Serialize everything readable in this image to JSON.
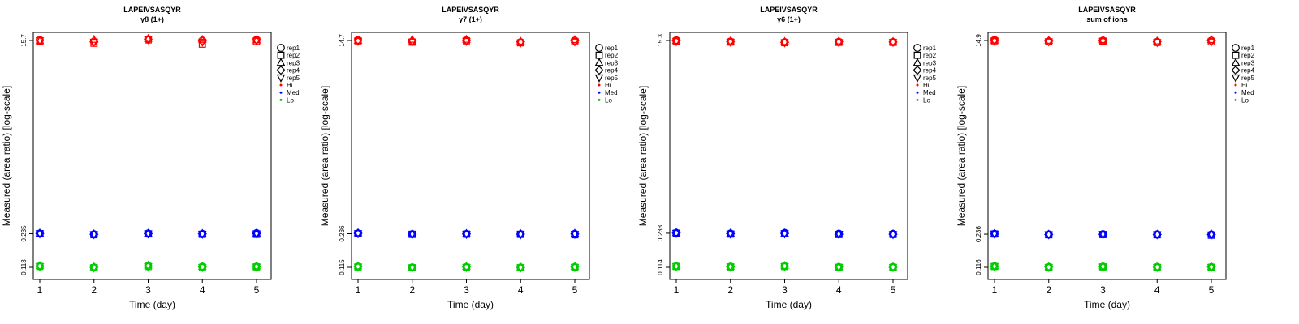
{
  "figure": {
    "xlabel": "Time (day)",
    "ylabel": "Measured (area ratio) [log-scale]"
  },
  "legend": {
    "position": "right",
    "replicates": [
      {
        "label": "rep1",
        "marker": "circle"
      },
      {
        "label": "rep2",
        "marker": "square"
      },
      {
        "label": "rep3",
        "marker": "triangle-up"
      },
      {
        "label": "rep4",
        "marker": "diamond"
      },
      {
        "label": "rep5",
        "marker": "triangle-down"
      }
    ],
    "levels": [
      {
        "label": "Hi",
        "color": "#ff0000"
      },
      {
        "label": "Med",
        "color": "#0000ff"
      },
      {
        "label": "Lo",
        "color": "#00cc00"
      }
    ]
  },
  "chart_data": [
    {
      "type": "scatter",
      "title": "LAPEIVSASQYR",
      "subtitle": "y8 (1+)",
      "xlabel": "Time (day)",
      "ylabel": "Measured (area ratio) [log-scale]",
      "x": [
        1,
        2,
        3,
        4,
        5
      ],
      "x_ticks": [
        "1",
        "2",
        "3",
        "4",
        "5"
      ],
      "y_scale": "log",
      "y_ticks": [
        "0.113",
        "0.235",
        "15.7"
      ],
      "y_tick_values": [
        0.113,
        0.235,
        15.7
      ],
      "series": [
        {
          "name": "Hi",
          "color": "#ff0000",
          "replicates": [
            [
              15.9,
              15.4,
              16.2,
              15.7,
              16.0
            ],
            [
              15.5,
              14.8,
              15.9,
              14.5,
              15.4
            ],
            [
              15.6,
              16.0,
              16.3,
              16.0,
              15.8
            ],
            [
              15.8,
              15.3,
              16.0,
              15.5,
              15.9
            ],
            [
              15.7,
              15.2,
              16.1,
              15.2,
              15.6
            ]
          ]
        },
        {
          "name": "Med",
          "color": "#0000ff",
          "replicates": [
            [
              0.236,
              0.232,
              0.236,
              0.234,
              0.238
            ],
            [
              0.235,
              0.23,
              0.234,
              0.232,
              0.232
            ],
            [
              0.237,
              0.233,
              0.236,
              0.235,
              0.237
            ],
            [
              0.236,
              0.232,
              0.235,
              0.234,
              0.236
            ],
            [
              0.235,
              0.231,
              0.235,
              0.233,
              0.235
            ]
          ]
        },
        {
          "name": "Lo",
          "color": "#00cc00",
          "replicates": [
            [
              0.116,
              0.113,
              0.117,
              0.115,
              0.115
            ],
            [
              0.115,
              0.112,
              0.115,
              0.113,
              0.114
            ],
            [
              0.117,
              0.114,
              0.118,
              0.115,
              0.116
            ],
            [
              0.116,
              0.113,
              0.116,
              0.114,
              0.115
            ],
            [
              0.115,
              0.112,
              0.115,
              0.113,
              0.114
            ]
          ]
        }
      ]
    },
    {
      "type": "scatter",
      "title": "LAPEIVSASQYR",
      "subtitle": "y7 (1+)",
      "xlabel": "Time (day)",
      "ylabel": "Measured (area ratio) [log-scale]",
      "x": [
        1,
        2,
        3,
        4,
        5
      ],
      "x_ticks": [
        "1",
        "2",
        "3",
        "4",
        "5"
      ],
      "y_scale": "log",
      "y_ticks": [
        "0.115",
        "0.236",
        "14.7"
      ],
      "y_tick_values": [
        0.115,
        0.236,
        14.7
      ],
      "series": [
        {
          "name": "Hi",
          "color": "#ff0000",
          "replicates": [
            [
              14.9,
              14.4,
              14.8,
              14.2,
              14.7
            ],
            [
              14.6,
              14.2,
              14.6,
              14.0,
              14.4
            ],
            [
              14.7,
              15.0,
              15.0,
              14.4,
              14.9
            ],
            [
              14.8,
              14.5,
              14.7,
              14.3,
              14.6
            ],
            [
              14.5,
              14.3,
              14.5,
              14.0,
              14.3
            ]
          ]
        },
        {
          "name": "Med",
          "color": "#0000ff",
          "replicates": [
            [
              0.238,
              0.234,
              0.235,
              0.234,
              0.236
            ],
            [
              0.236,
              0.233,
              0.234,
              0.233,
              0.231
            ],
            [
              0.24,
              0.235,
              0.236,
              0.235,
              0.237
            ],
            [
              0.238,
              0.234,
              0.235,
              0.234,
              0.235
            ],
            [
              0.237,
              0.233,
              0.234,
              0.232,
              0.234
            ]
          ]
        },
        {
          "name": "Lo",
          "color": "#00cc00",
          "replicates": [
            [
              0.117,
              0.115,
              0.116,
              0.115,
              0.116
            ],
            [
              0.116,
              0.114,
              0.115,
              0.114,
              0.115
            ],
            [
              0.118,
              0.115,
              0.117,
              0.115,
              0.117
            ],
            [
              0.117,
              0.114,
              0.116,
              0.114,
              0.116
            ],
            [
              0.116,
              0.114,
              0.115,
              0.114,
              0.115
            ]
          ]
        }
      ]
    },
    {
      "type": "scatter",
      "title": "LAPEIVSASQYR",
      "subtitle": "y6 (1+)",
      "xlabel": "Time (day)",
      "ylabel": "Measured (area ratio) [log-scale]",
      "x": [
        1,
        2,
        3,
        4,
        5
      ],
      "x_ticks": [
        "1",
        "2",
        "3",
        "4",
        "5"
      ],
      "y_scale": "log",
      "y_ticks": [
        "0.114",
        "0.238",
        "15.3"
      ],
      "y_tick_values": [
        0.114,
        0.238,
        15.3
      ],
      "series": [
        {
          "name": "Hi",
          "color": "#ff0000",
          "replicates": [
            [
              15.4,
              15.0,
              14.8,
              14.9,
              14.8
            ],
            [
              15.1,
              14.8,
              14.6,
              14.7,
              14.7
            ],
            [
              15.3,
              15.1,
              14.9,
              15.1,
              14.9
            ],
            [
              15.2,
              14.9,
              14.7,
              14.9,
              14.8
            ],
            [
              15.0,
              14.8,
              14.6,
              14.6,
              14.7
            ]
          ]
        },
        {
          "name": "Med",
          "color": "#0000ff",
          "replicates": [
            [
              0.24,
              0.237,
              0.24,
              0.236,
              0.235
            ],
            [
              0.238,
              0.234,
              0.236,
              0.232,
              0.232
            ],
            [
              0.241,
              0.238,
              0.238,
              0.234,
              0.234
            ],
            [
              0.239,
              0.236,
              0.237,
              0.233,
              0.233
            ],
            [
              0.238,
              0.235,
              0.236,
              0.234,
              0.232
            ]
          ]
        },
        {
          "name": "Lo",
          "color": "#00cc00",
          "replicates": [
            [
              0.117,
              0.116,
              0.117,
              0.115,
              0.115
            ],
            [
              0.116,
              0.115,
              0.116,
              0.114,
              0.114
            ],
            [
              0.117,
              0.116,
              0.118,
              0.115,
              0.115
            ],
            [
              0.117,
              0.115,
              0.117,
              0.115,
              0.114
            ],
            [
              0.116,
              0.115,
              0.116,
              0.114,
              0.114
            ]
          ]
        }
      ]
    },
    {
      "type": "scatter",
      "title": "LAPEIVSASQYR",
      "subtitle": "sum of ions",
      "xlabel": "Time (day)",
      "ylabel": "Measured (area ratio) [log-scale]",
      "x": [
        1,
        2,
        3,
        4,
        5
      ],
      "x_ticks": [
        "1",
        "2",
        "3",
        "4",
        "5"
      ],
      "y_scale": "log",
      "y_ticks": [
        "0.116",
        "0.236",
        "14.9"
      ],
      "y_tick_values": [
        0.116,
        0.236,
        14.9
      ],
      "series": [
        {
          "name": "Hi",
          "color": "#ff0000",
          "replicates": [
            [
              15.1,
              14.7,
              14.9,
              14.5,
              14.9
            ],
            [
              14.8,
              14.5,
              14.7,
              14.3,
              14.5
            ],
            [
              15.0,
              14.9,
              15.1,
              14.7,
              15.1
            ],
            [
              14.9,
              14.7,
              14.8,
              14.5,
              14.8
            ],
            [
              14.7,
              14.5,
              14.6,
              14.3,
              14.5
            ]
          ]
        },
        {
          "name": "Med",
          "color": "#0000ff",
          "replicates": [
            [
              0.238,
              0.235,
              0.236,
              0.235,
              0.235
            ],
            [
              0.237,
              0.233,
              0.234,
              0.233,
              0.231
            ],
            [
              0.239,
              0.235,
              0.236,
              0.235,
              0.236
            ],
            [
              0.238,
              0.234,
              0.235,
              0.234,
              0.234
            ],
            [
              0.237,
              0.234,
              0.235,
              0.234,
              0.233
            ]
          ]
        },
        {
          "name": "Lo",
          "color": "#00cc00",
          "replicates": [
            [
              0.119,
              0.117,
              0.118,
              0.117,
              0.117
            ],
            [
              0.118,
              0.116,
              0.117,
              0.116,
              0.116
            ],
            [
              0.119,
              0.117,
              0.119,
              0.117,
              0.117
            ],
            [
              0.118,
              0.117,
              0.118,
              0.116,
              0.117
            ],
            [
              0.118,
              0.116,
              0.117,
              0.116,
              0.116
            ]
          ]
        }
      ]
    }
  ]
}
